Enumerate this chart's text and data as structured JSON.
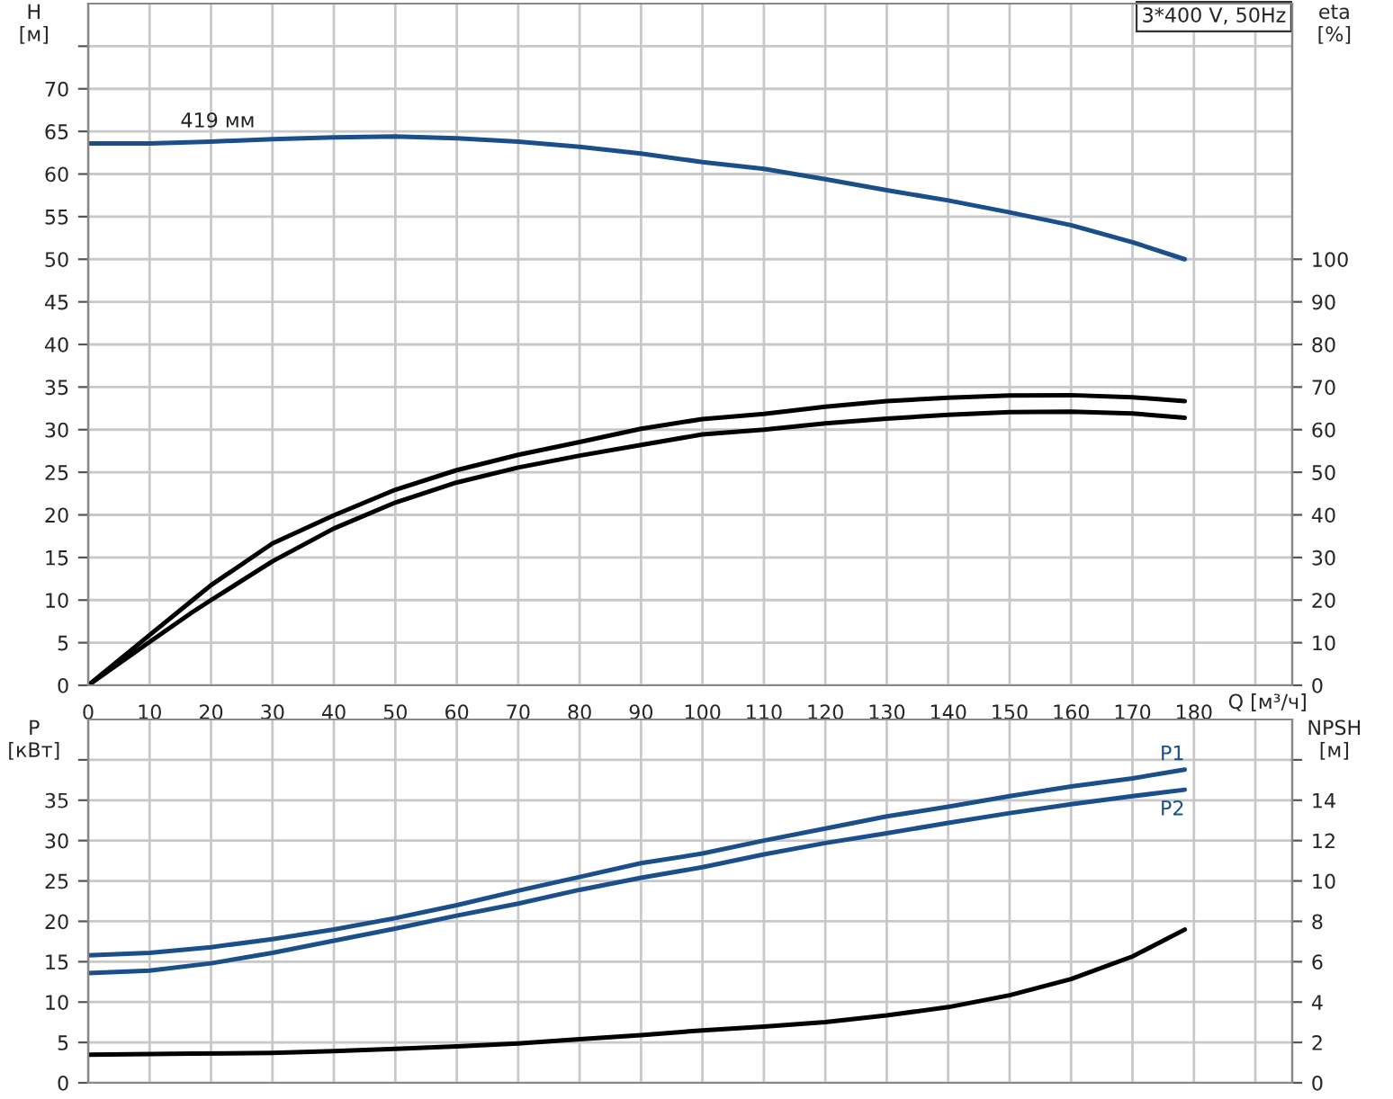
{
  "chart_data": [
    {
      "type": "line",
      "annotations": [
        "3*400 V, 50Hz",
        {
          "text": "419 мм",
          "x": 15,
          "y": 65
        }
      ],
      "xlabel": "Q [м³/ч]",
      "ylabel": "H\n[м]",
      "y2label": "eta\n[%]",
      "grid": true,
      "legend": false,
      "marker": "none",
      "line_style": "solid",
      "xlim": [
        0,
        196
      ],
      "xticks": [
        0,
        10,
        20,
        30,
        40,
        50,
        60,
        70,
        80,
        90,
        100,
        110,
        120,
        130,
        140,
        150,
        160,
        170,
        180,
        {
          "value": 190,
          "label": null
        }
      ],
      "ylim": [
        0,
        80
      ],
      "yticks": [
        0,
        5,
        10,
        15,
        20,
        25,
        30,
        35,
        40,
        45,
        50,
        55,
        60,
        65,
        70,
        {
          "value": 75,
          "label": null
        }
      ],
      "y2lim": [
        0,
        160
      ],
      "y2ticks": [
        0,
        10,
        20,
        30,
        40,
        50,
        60,
        70,
        80,
        90,
        100
      ],
      "series": [
        {
          "color": "#1a4f8b",
          "x": [
            0,
            10,
            20,
            30,
            40,
            50,
            60,
            70,
            80,
            90,
            100,
            110,
            120,
            130,
            140,
            150,
            160,
            170,
            178.5
          ],
          "values": [
            63.6,
            63.6,
            63.8,
            64.1,
            64.3,
            64.4,
            64.2,
            63.8,
            63.2,
            62.4,
            61.4,
            60.6,
            59.4,
            58.1,
            56.9,
            55.5,
            54.0,
            52.0,
            50.0
          ]
        },
        {
          "color": "#000000",
          "axis": "y2",
          "x": [
            0,
            10,
            17,
            20,
            30,
            40,
            50,
            60,
            70,
            80,
            90,
            100,
            110,
            120,
            130,
            140,
            150,
            160,
            170,
            178.5
          ],
          "values": [
            0,
            11.8,
            20,
            23.5,
            33.3,
            39.9,
            45.9,
            50.5,
            54.1,
            57.1,
            60.2,
            62.5,
            63.7,
            65.4,
            66.7,
            67.5,
            68,
            68.1,
            67.6,
            66.7
          ]
        },
        {
          "color": "#000000",
          "axis": "y2",
          "x": [
            0,
            10,
            17,
            20,
            30,
            40,
            50,
            60,
            70,
            80,
            90,
            100,
            110,
            120,
            130,
            140,
            150,
            160,
            170,
            178.5
          ],
          "values": [
            0,
            10.2,
            17.2,
            20,
            29.1,
            36.8,
            42.9,
            47.6,
            51.1,
            53.9,
            56.4,
            58.9,
            60,
            61.5,
            62.6,
            63.5,
            64.1,
            64.2,
            63.8,
            62.8
          ]
        }
      ]
    },
    {
      "type": "line",
      "ylabel": "P\n[кВт]",
      "y2label": "NPSH\n[м]",
      "grid": true,
      "legend": false,
      "marker": "none",
      "line_style": "solid",
      "tick_labels": "y",
      "xlim": [
        0,
        196
      ],
      "xticks": [
        0,
        10,
        20,
        30,
        40,
        50,
        60,
        70,
        80,
        90,
        100,
        110,
        120,
        130,
        140,
        150,
        160,
        170,
        180,
        190
      ],
      "ylim": [
        0,
        45
      ],
      "yticks": [
        0,
        5,
        10,
        15,
        20,
        25,
        30,
        35,
        {
          "value": 40,
          "label": null
        }
      ],
      "y2lim": [
        0,
        18
      ],
      "y2ticks": [
        0,
        2,
        4,
        6,
        8,
        10,
        12,
        14,
        {
          "value": 16,
          "label": null
        }
      ],
      "series": [
        {
          "name": "P1",
          "color": "#1a4f8b",
          "x": [
            0,
            10,
            20,
            30,
            40,
            50,
            60,
            70,
            80,
            90,
            100,
            110,
            120,
            130,
            140,
            150,
            160,
            170,
            178.5
          ],
          "values": [
            15.8,
            16.1,
            16.8,
            17.8,
            19.0,
            20.4,
            22.0,
            23.8,
            25.5,
            27.2,
            28.4,
            30.0,
            31.5,
            33.0,
            34.2,
            35.5,
            36.7,
            37.7,
            38.8
          ]
        },
        {
          "name": "P2",
          "color": "#1a4f8b",
          "x": [
            0,
            10,
            20,
            30,
            40,
            50,
            60,
            70,
            80,
            90,
            100,
            110,
            120,
            130,
            140,
            150,
            160,
            170,
            178.5
          ],
          "values": [
            13.6,
            13.9,
            14.8,
            16.1,
            17.6,
            19.1,
            20.7,
            22.2,
            23.9,
            25.4,
            26.7,
            28.3,
            29.7,
            30.9,
            32.2,
            33.4,
            34.5,
            35.5,
            36.3
          ]
        },
        {
          "color": "#000000",
          "axis": "y2",
          "x": [
            0,
            17,
            30,
            40,
            50,
            60,
            70,
            80,
            90,
            100,
            110,
            120,
            130,
            140,
            150,
            160,
            170,
            178.5
          ],
          "values": [
            1.39,
            1.45,
            1.48,
            1.57,
            1.68,
            1.8,
            1.95,
            2.16,
            2.36,
            2.6,
            2.78,
            3.01,
            3.34,
            3.75,
            4.34,
            5.14,
            6.26,
            7.59
          ]
        }
      ]
    }
  ]
}
